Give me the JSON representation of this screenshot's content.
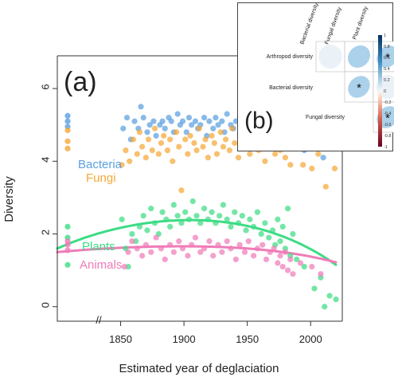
{
  "chart_data": [
    {
      "type": "scatter",
      "panel_label": "(a)",
      "xlabel": "Estimated year of deglaciation",
      "ylabel": "Diversity",
      "xlim": [
        1800,
        2025
      ],
      "ylim": [
        -0.4,
        6.9
      ],
      "x_ticks": [
        "1850",
        "1900",
        "1950",
        "2000"
      ],
      "y_ticks": [
        "0",
        "2",
        "4",
        "6"
      ],
      "axis_break": "//",
      "series": [
        {
          "name": "Bacteria",
          "color": "#5a9fe0",
          "reference_points": [
            5.25,
            5.1,
            4.95
          ],
          "points": [
            [
              1852,
              4.9
            ],
            [
              1855,
              5.2
            ],
            [
              1858,
              4.6
            ],
            [
              1861,
              5.1
            ],
            [
              1864,
              4.9
            ],
            [
              1866,
              5.5
            ],
            [
              1868,
              5.2
            ],
            [
              1871,
              4.8
            ],
            [
              1873,
              5.0
            ],
            [
              1876,
              5.1
            ],
            [
              1878,
              4.7
            ],
            [
              1881,
              5.0
            ],
            [
              1883,
              5.1
            ],
            [
              1885,
              4.9
            ],
            [
              1888,
              5.2
            ],
            [
              1890,
              5.1
            ],
            [
              1892,
              4.8
            ],
            [
              1895,
              5.3
            ],
            [
              1897,
              5.0
            ],
            [
              1899,
              5.1
            ],
            [
              1902,
              4.8
            ],
            [
              1904,
              5.2
            ],
            [
              1906,
              5.0
            ],
            [
              1909,
              5.1
            ],
            [
              1911,
              4.9
            ],
            [
              1913,
              5.0
            ],
            [
              1916,
              5.2
            ],
            [
              1918,
              4.7
            ],
            [
              1920,
              5.1
            ],
            [
              1923,
              4.9
            ],
            [
              1925,
              5.2
            ],
            [
              1927,
              5.0
            ],
            [
              1930,
              5.1
            ],
            [
              1932,
              4.8
            ],
            [
              1934,
              5.3
            ],
            [
              1937,
              5.0
            ],
            [
              1939,
              4.9
            ],
            [
              1941,
              5.1
            ],
            [
              1944,
              5.2
            ],
            [
              1946,
              4.8
            ],
            [
              1948,
              5.0
            ],
            [
              1951,
              5.1
            ],
            [
              1953,
              4.9
            ],
            [
              1955,
              5.2
            ],
            [
              1958,
              5.0
            ],
            [
              1960,
              4.7
            ],
            [
              1962,
              5.1
            ],
            [
              1965,
              5.0
            ],
            [
              1967,
              5.3
            ],
            [
              1969,
              4.9
            ],
            [
              1971,
              5.1
            ],
            [
              1973,
              5.6
            ],
            [
              1975,
              4.8
            ],
            [
              1977,
              5.2
            ],
            [
              1979,
              4.6
            ],
            [
              1981,
              5.0
            ],
            [
              1983,
              4.9
            ],
            [
              1985,
              4.5
            ],
            [
              1995,
              4.3
            ],
            [
              2003,
              4.7
            ],
            [
              2010,
              4.1
            ],
            [
              2015,
              4.5
            ],
            [
              2018,
              5.4
            ]
          ]
        },
        {
          "name": "Fungi",
          "color": "#f5a836",
          "reference_points": [
            4.85,
            4.55,
            4.35
          ],
          "points": [
            [
              1851,
              3.9
            ],
            [
              1854,
              4.3
            ],
            [
              1857,
              4.0
            ],
            [
              1860,
              4.6
            ],
            [
              1863,
              4.2
            ],
            [
              1865,
              4.8
            ],
            [
              1867,
              4.4
            ],
            [
              1870,
              4.1
            ],
            [
              1872,
              4.6
            ],
            [
              1875,
              4.3
            ],
            [
              1877,
              4.9
            ],
            [
              1880,
              4.2
            ],
            [
              1882,
              4.5
            ],
            [
              1884,
              4.7
            ],
            [
              1887,
              4.3
            ],
            [
              1889,
              4.6
            ],
            [
              1891,
              4.0
            ],
            [
              1894,
              4.8
            ],
            [
              1896,
              4.4
            ],
            [
              1898,
              3.2
            ],
            [
              1901,
              4.6
            ],
            [
              1903,
              4.2
            ],
            [
              1905,
              4.7
            ],
            [
              1908,
              4.5
            ],
            [
              1910,
              4.3
            ],
            [
              1912,
              4.9
            ],
            [
              1915,
              4.4
            ],
            [
              1917,
              4.6
            ],
            [
              1919,
              4.1
            ],
            [
              1922,
              4.7
            ],
            [
              1924,
              4.5
            ],
            [
              1926,
              4.2
            ],
            [
              1929,
              4.8
            ],
            [
              1931,
              4.4
            ],
            [
              1933,
              4.6
            ],
            [
              1936,
              4.3
            ],
            [
              1938,
              4.9
            ],
            [
              1940,
              4.5
            ],
            [
              1943,
              4.1
            ],
            [
              1945,
              4.7
            ],
            [
              1947,
              4.4
            ],
            [
              1950,
              4.6
            ],
            [
              1952,
              4.2
            ],
            [
              1954,
              4.8
            ],
            [
              1957,
              4.5
            ],
            [
              1959,
              4.3
            ],
            [
              1961,
              4.7
            ],
            [
              1964,
              4.0
            ],
            [
              1966,
              4.6
            ],
            [
              1968,
              4.4
            ],
            [
              1970,
              4.9
            ],
            [
              1972,
              4.2
            ],
            [
              1974,
              4.6
            ],
            [
              1976,
              4.3
            ],
            [
              1978,
              4.8
            ],
            [
              1980,
              4.1
            ],
            [
              1982,
              4.5
            ],
            [
              1984,
              3.9
            ],
            [
              1986,
              4.4
            ],
            [
              1994,
              3.9
            ],
            [
              2001,
              3.8
            ],
            [
              2006,
              4.2
            ],
            [
              2012,
              3.3
            ],
            [
              2019,
              3.8
            ]
          ]
        },
        {
          "name": "Plants",
          "color": "#3ddc84",
          "reference_points": [
            2.2,
            1.9,
            1.15
          ],
          "points": [
            [
              1851,
              2.4
            ],
            [
              1854,
              1.6
            ],
            [
              1856,
              1.1
            ],
            [
              1859,
              2.0
            ],
            [
              1862,
              1.8
            ],
            [
              1865,
              2.2
            ],
            [
              1868,
              2.5
            ],
            [
              1871,
              2.1
            ],
            [
              1874,
              2.7
            ],
            [
              1877,
              2.3
            ],
            [
              1880,
              2.0
            ],
            [
              1883,
              2.6
            ],
            [
              1886,
              2.4
            ],
            [
              1889,
              2.2
            ],
            [
              1892,
              2.8
            ],
            [
              1895,
              2.5
            ],
            [
              1898,
              2.3
            ],
            [
              1901,
              2.6
            ],
            [
              1904,
              2.4
            ],
            [
              1907,
              2.9
            ],
            [
              1910,
              2.5
            ],
            [
              1913,
              2.3
            ],
            [
              1916,
              2.7
            ],
            [
              1919,
              2.4
            ],
            [
              1922,
              2.6
            ],
            [
              1925,
              2.3
            ],
            [
              1928,
              2.5
            ],
            [
              1931,
              2.8
            ],
            [
              1934,
              2.4
            ],
            [
              1937,
              2.2
            ],
            [
              1940,
              2.6
            ],
            [
              1943,
              2.3
            ],
            [
              1946,
              2.5
            ],
            [
              1949,
              2.1
            ],
            [
              1952,
              2.4
            ],
            [
              1955,
              2.2
            ],
            [
              1958,
              2.6
            ],
            [
              1961,
              2.0
            ],
            [
              1964,
              2.3
            ],
            [
              1967,
              1.9
            ],
            [
              1970,
              2.1
            ],
            [
              1972,
              1.7
            ],
            [
              1974,
              2.4
            ],
            [
              1976,
              1.8
            ],
            [
              1978,
              2.2
            ],
            [
              1980,
              1.6
            ],
            [
              1982,
              2.7
            ],
            [
              1984,
              1.4
            ],
            [
              1986,
              2.0
            ],
            [
              1989,
              1.3
            ],
            [
              1995,
              1.1
            ],
            [
              2003,
              0.5
            ],
            [
              2008,
              0.8
            ],
            [
              2011,
              0.0
            ],
            [
              2015,
              0.3
            ],
            [
              2020,
              0.2
            ]
          ]
        },
        {
          "name": "Animals",
          "color": "#f07bb8",
          "reference_points": [
            1.8,
            1.7,
            1.55
          ],
          "points": [
            [
              1853,
              1.1
            ],
            [
              1856,
              1.5
            ],
            [
              1859,
              1.8
            ],
            [
              1863,
              1.6
            ],
            [
              1867,
              1.4
            ],
            [
              1870,
              1.7
            ],
            [
              1874,
              1.5
            ],
            [
              1878,
              1.9
            ],
            [
              1882,
              1.6
            ],
            [
              1885,
              1.3
            ],
            [
              1889,
              1.7
            ],
            [
              1892,
              1.5
            ],
            [
              1896,
              1.8
            ],
            [
              1899,
              1.6
            ],
            [
              1903,
              1.4
            ],
            [
              1906,
              1.7
            ],
            [
              1909,
              1.9
            ],
            [
              1913,
              1.5
            ],
            [
              1916,
              1.6
            ],
            [
              1920,
              1.8
            ],
            [
              1923,
              1.4
            ],
            [
              1927,
              1.7
            ],
            [
              1930,
              1.5
            ],
            [
              1934,
              1.8
            ],
            [
              1937,
              1.6
            ],
            [
              1941,
              1.3
            ],
            [
              1944,
              1.7
            ],
            [
              1948,
              1.5
            ],
            [
              1951,
              1.8
            ],
            [
              1955,
              1.4
            ],
            [
              1958,
              1.6
            ],
            [
              1962,
              1.7
            ],
            [
              1965,
              1.3
            ],
            [
              1968,
              1.5
            ],
            [
              1971,
              1.6
            ],
            [
              1974,
              1.2
            ],
            [
              1976,
              1.4
            ],
            [
              1978,
              1.1
            ],
            [
              1980,
              1.5
            ],
            [
              1982,
              1.0
            ],
            [
              1984,
              1.3
            ],
            [
              1986,
              0.9
            ],
            [
              1992,
              1.2
            ],
            [
              2001,
              1.1
            ],
            [
              2008,
              0.9
            ]
          ]
        }
      ],
      "fits": [
        {
          "series": "Plants",
          "color": "#3ddc84",
          "type": "quadratic",
          "points": [
            [
              1800,
              1.6
            ],
            [
              1850,
              2.17
            ],
            [
              1900,
              2.38
            ],
            [
              1950,
              2.22
            ],
            [
              2020,
              1.15
            ]
          ]
        },
        {
          "series": "Animals",
          "color": "#f07bb8",
          "type": "quadratic",
          "points": [
            [
              1800,
              1.5
            ],
            [
              1850,
              1.62
            ],
            [
              1900,
              1.66
            ],
            [
              1950,
              1.6
            ],
            [
              2020,
              1.22
            ]
          ]
        }
      ]
    },
    {
      "type": "heatmap",
      "panel_label": "(b)",
      "columns": [
        "Bacterial diversity",
        "Fungal diversity",
        "Plant diversity"
      ],
      "rows": [
        "Arthropod diversity",
        "Bacterial diversity",
        "Fungal diversity"
      ],
      "cells": [
        {
          "row": 0,
          "col": 0,
          "value": 0.05,
          "significant": false
        },
        {
          "row": 0,
          "col": 1,
          "value": 0.35,
          "significant": false
        },
        {
          "row": 0,
          "col": 2,
          "value": 0.45,
          "significant": true
        },
        {
          "row": 1,
          "col": 1,
          "value": 0.45,
          "significant": true
        },
        {
          "row": 1,
          "col": 2,
          "value": 0.12,
          "significant": false
        },
        {
          "row": 2,
          "col": 2,
          "value": 0.45,
          "significant": true
        }
      ],
      "significance_marker": "*",
      "colorbar_ticks": [
        "1",
        "0.8",
        "0.6",
        "0.4",
        "0.2",
        "0",
        "-0.2",
        "-0.4",
        "-0.6",
        "-0.8",
        "-1"
      ],
      "colorbar_high": "#053061",
      "colorbar_low": "#67001f"
    }
  ]
}
